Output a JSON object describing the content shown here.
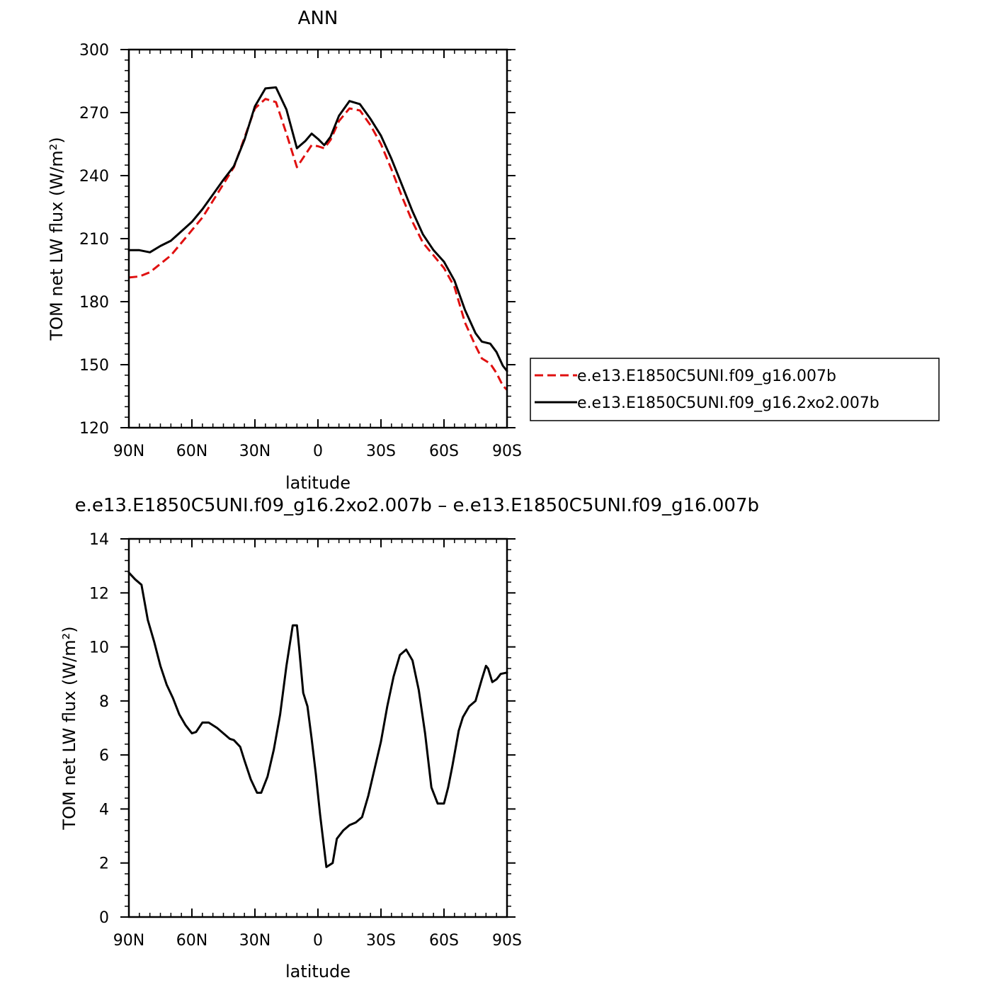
{
  "figure_title": "ANN",
  "chart_data": [
    {
      "type": "line",
      "title": "ANN",
      "xlabel": "latitude",
      "ylabel": "TOM net LW flux (W/m²)",
      "xlim": [
        90,
        -90
      ],
      "ylim": [
        120,
        300
      ],
      "xticks": [
        90,
        60,
        30,
        0,
        -30,
        -60,
        -90
      ],
      "xtick_labels": [
        "90N",
        "60N",
        "30N",
        "0",
        "30S",
        "60S",
        "90S"
      ],
      "yticks": [
        120,
        150,
        180,
        210,
        240,
        270,
        300
      ],
      "ytick_labels": [
        "120",
        "150",
        "180",
        "210",
        "240",
        "270",
        "300"
      ],
      "grid": false,
      "legend_position": "right",
      "series": [
        {
          "name": "e.e13.E1850C5UNI.f09_g16.007b",
          "color": "#e01010",
          "dash": "dashed",
          "x": [
            90,
            85,
            80,
            75,
            70,
            65,
            60,
            55,
            50,
            45,
            40,
            35,
            30,
            25,
            20,
            15,
            10,
            6,
            3,
            0,
            -3,
            -6,
            -10,
            -15,
            -20,
            -25,
            -30,
            -35,
            -40,
            -45,
            -50,
            -55,
            -60,
            -65,
            -70,
            -75,
            -78,
            -82,
            -85,
            -88,
            -90
          ],
          "y": [
            191.5,
            192,
            194,
            198,
            202,
            208,
            214,
            220,
            228,
            236,
            244,
            258,
            272,
            276.5,
            275,
            260,
            244,
            250,
            254.5,
            254,
            253,
            257,
            266,
            272,
            271,
            264,
            255,
            243,
            230,
            218,
            208,
            202,
            196,
            187,
            170,
            159,
            153,
            150.5,
            146,
            140,
            138
          ]
        },
        {
          "name": "e.e13.E1850C5UNI.f09_g16.2xo2.007b",
          "color": "#000000",
          "dash": "solid",
          "x": [
            90,
            85,
            80,
            75,
            70,
            65,
            60,
            55,
            50,
            45,
            40,
            35,
            30,
            25,
            20,
            15,
            10,
            6,
            3,
            0,
            -3,
            -6,
            -10,
            -15,
            -20,
            -25,
            -30,
            -35,
            -40,
            -45,
            -50,
            -55,
            -60,
            -65,
            -70,
            -75,
            -78,
            -82,
            -85,
            -88,
            -90
          ],
          "y": [
            204.5,
            204.5,
            203.5,
            206.5,
            209,
            213.5,
            218,
            224,
            231,
            238,
            244.5,
            257,
            273,
            281.5,
            282,
            271.5,
            253,
            256.5,
            260,
            257.5,
            254.5,
            258.5,
            268.5,
            275.5,
            274,
            267,
            259,
            248,
            235.5,
            223,
            212,
            204.5,
            199,
            190,
            176,
            165,
            161,
            160,
            156,
            149.5,
            147
          ]
        }
      ]
    },
    {
      "type": "line",
      "title": "e.e13.E1850C5UNI.f09_g16.2xo2.007b – e.e13.E1850C5UNI.f09_g16.007b",
      "xlabel": "latitude",
      "ylabel": "TOM net LW flux (W/m²)",
      "xlim": [
        90,
        -90
      ],
      "ylim": [
        0,
        14
      ],
      "xticks": [
        90,
        60,
        30,
        0,
        -30,
        -60,
        -90
      ],
      "xtick_labels": [
        "90N",
        "60N",
        "30N",
        "0",
        "30S",
        "60S",
        "90S"
      ],
      "yticks": [
        0,
        2,
        4,
        6,
        8,
        10,
        12,
        14
      ],
      "ytick_labels": [
        "0",
        "2",
        "4",
        "6",
        "8",
        "10",
        "12",
        "14"
      ],
      "grid": false,
      "series": [
        {
          "name": "",
          "color": "#000000",
          "dash": "solid",
          "x": [
            90,
            87,
            84,
            81,
            78,
            75,
            72,
            69,
            66,
            63,
            60,
            58,
            55,
            52,
            48,
            45,
            42,
            40,
            37,
            35,
            32,
            29,
            27,
            24,
            21,
            18,
            15,
            12,
            10,
            9,
            7,
            5,
            3,
            1,
            -1,
            -4,
            -7,
            -9,
            -12,
            -15,
            -18,
            -21,
            -24,
            -27,
            -30,
            -33,
            -36,
            -39,
            -42,
            -45,
            -48,
            -51,
            -54,
            -57,
            -60,
            -62,
            -64,
            -67,
            -69,
            -72,
            -75,
            -78,
            -80,
            -81,
            -83,
            -85,
            -87,
            -90
          ],
          "y": [
            12.75,
            12.5,
            12.3,
            11.0,
            10.2,
            9.3,
            8.6,
            8.1,
            7.5,
            7.1,
            6.8,
            6.85,
            7.2,
            7.2,
            7.0,
            6.8,
            6.6,
            6.55,
            6.3,
            5.8,
            5.1,
            4.6,
            4.6,
            5.2,
            6.2,
            7.5,
            9.3,
            10.8,
            10.8,
            10.0,
            8.3,
            7.8,
            6.6,
            5.3,
            3.8,
            1.85,
            2.0,
            2.9,
            3.2,
            3.4,
            3.5,
            3.7,
            4.5,
            5.5,
            6.5,
            7.8,
            8.9,
            9.7,
            9.9,
            9.5,
            8.4,
            6.8,
            4.8,
            4.2,
            4.2,
            4.8,
            5.6,
            6.9,
            7.4,
            7.8,
            8.0,
            8.8,
            9.3,
            9.2,
            8.7,
            8.8,
            9.0,
            9.05
          ]
        }
      ]
    }
  ]
}
